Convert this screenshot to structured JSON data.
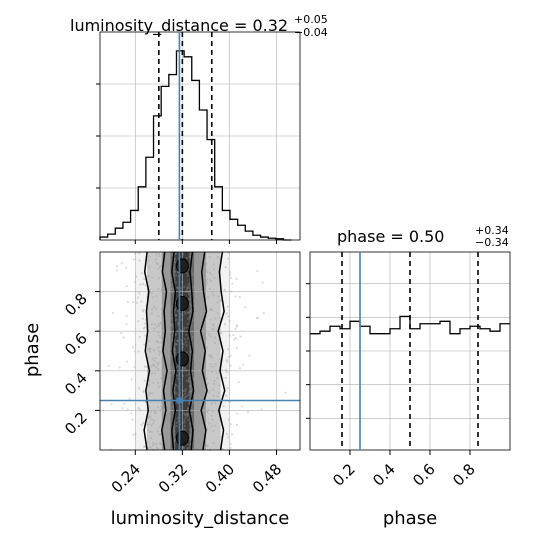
{
  "chart_data": [
    {
      "type": "histogram",
      "panel": "luminosity_distance-marginal",
      "title": {
        "main": "luminosity_distance = 0.32",
        "sup": "+0.05",
        "sub": "−0.04"
      },
      "xlim": [
        0.18,
        0.52
      ],
      "bin_edges": [
        0.18,
        0.193,
        0.206,
        0.219,
        0.232,
        0.245,
        0.258,
        0.271,
        0.284,
        0.297,
        0.31,
        0.323,
        0.336,
        0.349,
        0.362,
        0.375,
        0.388,
        0.401,
        0.414,
        0.427,
        0.44,
        0.453,
        0.466,
        0.479,
        0.492,
        0.505
      ],
      "counts": [
        0.5,
        1,
        2,
        3,
        5,
        9,
        14,
        21,
        26,
        28,
        32,
        31,
        27,
        22,
        17,
        9,
        5,
        3.5,
        2.5,
        1.5,
        0.8,
        0.5,
        0.3,
        0.2,
        0
      ],
      "quantiles": [
        0.28,
        0.32,
        0.37
      ],
      "truth": 0.315,
      "grid": true
    },
    {
      "type": "histogram",
      "panel": "phase-marginal",
      "title": {
        "main": "phase = 0.50",
        "sup": "+0.34",
        "sub": "−0.34"
      },
      "xlim": [
        0.0,
        1.0
      ],
      "bin_edges": [
        0.0,
        0.05,
        0.1,
        0.15,
        0.2,
        0.25,
        0.3,
        0.35,
        0.4,
        0.45,
        0.5,
        0.55,
        0.6,
        0.65,
        0.7,
        0.75,
        0.8,
        0.85,
        0.9,
        0.95,
        1.0
      ],
      "counts": [
        23.5,
        24,
        25,
        24.5,
        26,
        25,
        23.5,
        23.5,
        24.5,
        27,
        24.5,
        25.5,
        25.5,
        26,
        23.5,
        24.5,
        25,
        24.5,
        24,
        25.5
      ],
      "quantiles": [
        0.16,
        0.5,
        0.84
      ],
      "truth": 0.25,
      "grid": true
    },
    {
      "type": "scatter",
      "panel": "luminosity_distance-vs-phase",
      "xlabel": "luminosity_distance",
      "ylabel": "phase",
      "xlim": [
        0.18,
        0.52
      ],
      "ylim": [
        0.0,
        1.0
      ],
      "xticks": [
        0.24,
        0.32,
        0.4,
        0.48
      ],
      "xtick_labels": [
        "0.24",
        "0.32",
        "0.40",
        "0.48"
      ],
      "yticks": [
        0.2,
        0.4,
        0.6,
        0.8
      ],
      "ytick_labels": [
        "0.2",
        "0.4",
        "0.6",
        "0.8"
      ],
      "truth": {
        "x": 0.315,
        "y": 0.25
      },
      "density_contours": [
        {
          "level": "outer",
          "x_left": [
            0.26,
            0.255,
            0.262,
            0.258,
            0.264,
            0.257,
            0.261,
            0.259,
            0.263,
            0.256,
            0.26
          ],
          "x_right": [
            0.385,
            0.39,
            0.382,
            0.392,
            0.384,
            0.389,
            0.381,
            0.391,
            0.386,
            0.383,
            0.388
          ]
        },
        {
          "level": "middle",
          "x_left": [
            0.29,
            0.285,
            0.292,
            0.288,
            0.294,
            0.287,
            0.291,
            0.289,
            0.293,
            0.286,
            0.29
          ],
          "x_right": [
            0.355,
            0.36,
            0.352,
            0.362,
            0.354,
            0.359,
            0.351,
            0.361,
            0.356,
            0.353,
            0.358
          ]
        },
        {
          "level": "inner",
          "x_left": [
            0.305,
            0.302,
            0.308,
            0.304,
            0.309,
            0.303,
            0.307,
            0.305,
            0.308,
            0.302,
            0.306
          ],
          "x_right": [
            0.335,
            0.338,
            0.332,
            0.339,
            0.334,
            0.337,
            0.331,
            0.338,
            0.336,
            0.333,
            0.337
          ]
        }
      ],
      "grid": true
    },
    {
      "type": "histogram",
      "panel": "phase-axis",
      "xlabel": "phase",
      "xticks": [
        0.2,
        0.4,
        0.6,
        0.8
      ],
      "xtick_labels": [
        "0.2",
        "0.4",
        "0.6",
        "0.8"
      ]
    }
  ],
  "colors": {
    "hist": "#000000",
    "truth": "#4682b4",
    "grid": "#b0b0b0",
    "scatter": "#999999",
    "density": [
      "#f2f2f2",
      "#c8c8c8",
      "#9a9a9a",
      "#6a6a6a",
      "#3c3c3c"
    ]
  }
}
